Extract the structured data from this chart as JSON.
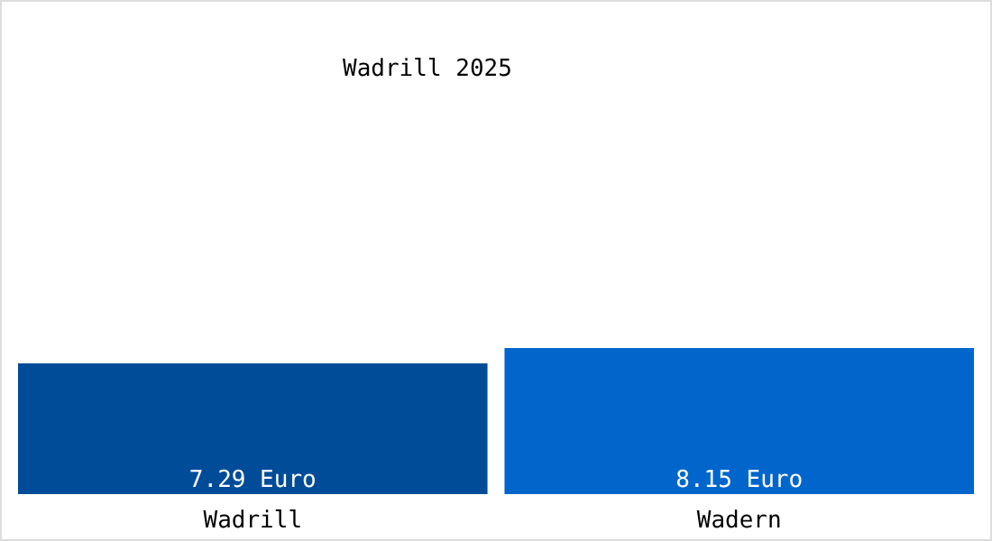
{
  "chart_data": {
    "type": "bar",
    "title": "Wadrill 2025",
    "categories": [
      "Wadrill",
      "Wadern"
    ],
    "values": [
      7.29,
      8.15
    ],
    "colors": [
      "#004c99",
      "#0066cc"
    ],
    "value_labels": [
      "7.29 Euro",
      "8.15 Euro"
    ]
  }
}
